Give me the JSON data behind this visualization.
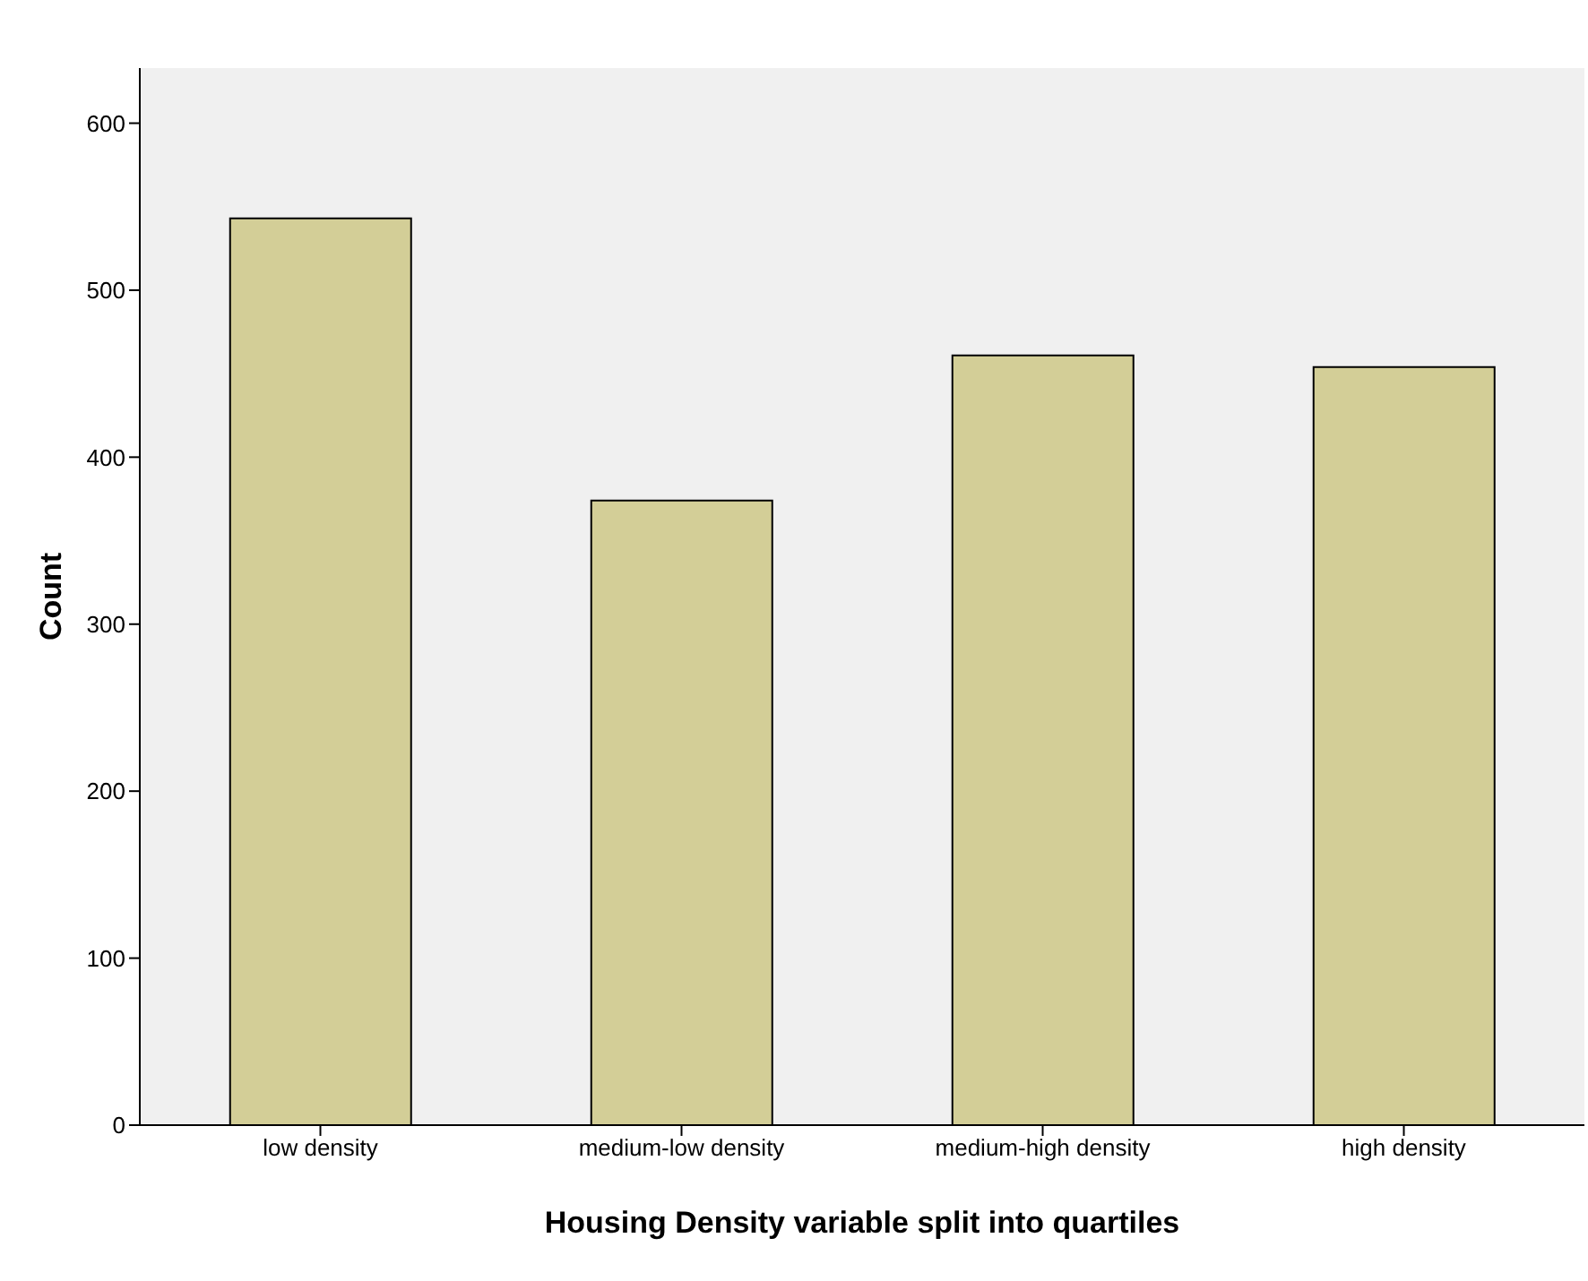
{
  "chart_data": {
    "type": "bar",
    "xlabel": "Housing Density variable split into quartiles",
    "ylabel": "Count",
    "categories": [
      "low density",
      "medium-low density",
      "medium-high density",
      "high density"
    ],
    "values": [
      543,
      374,
      461,
      454
    ],
    "color": "#d3ce97",
    "ylim": [
      0,
      633
    ],
    "yticks": [
      0,
      100,
      200,
      300,
      400,
      500,
      600
    ],
    "grid": false,
    "legend": false
  }
}
